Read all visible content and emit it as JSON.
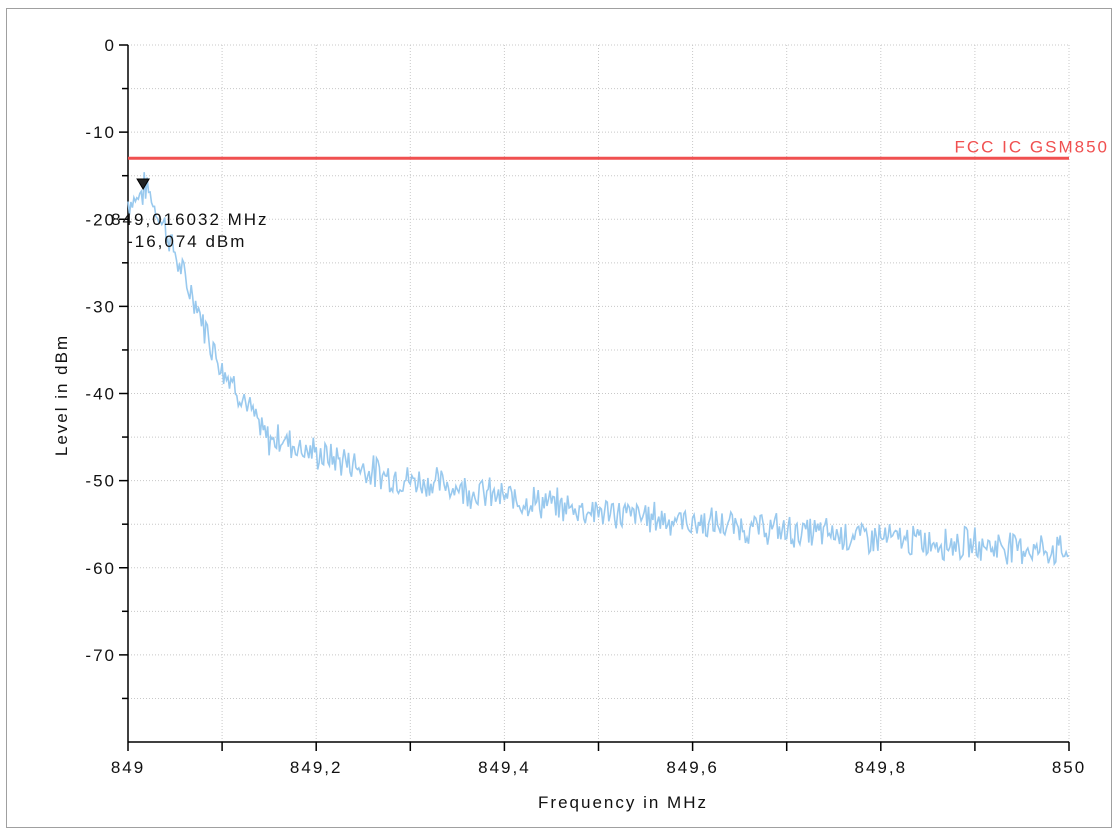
{
  "chart_data": {
    "type": "line",
    "xlabel": "Frequency in MHz",
    "ylabel": "Level in dBm",
    "xlim": [
      849,
      850
    ],
    "ylim": [
      -80,
      0
    ],
    "x_ticks": [
      "849",
      "849,2",
      "849,4",
      "849,6",
      "849,8",
      "850"
    ],
    "x_tick_values": [
      849,
      849.2,
      849.4,
      849.6,
      849.8,
      850
    ],
    "y_ticks": [
      "0",
      "-10",
      "-20",
      "-30",
      "-40",
      "-50",
      "-60",
      "-70"
    ],
    "y_tick_values": [
      0,
      -10,
      -20,
      -30,
      -40,
      -50,
      -60,
      -70
    ],
    "grid": true,
    "limit_line": {
      "name": "FCC IC GSM850",
      "value": -13,
      "color": "#f05050"
    },
    "marker": {
      "x": 849.016032,
      "y": -16.074,
      "freq_label": "849,016032 MHz",
      "level_label": "-16,074 dBm"
    },
    "series": [
      {
        "color": "#99c9ee",
        "x": [
          849.0,
          849.01,
          849.02,
          849.03,
          849.04,
          849.05,
          849.06,
          849.07,
          849.08,
          849.09,
          849.1,
          849.11,
          849.12,
          849.13,
          849.14,
          849.15,
          849.16,
          849.17,
          849.18,
          849.19,
          849.2,
          849.22,
          849.24,
          849.26,
          849.28,
          849.3,
          849.32,
          849.34,
          849.36,
          849.38,
          849.4,
          849.42,
          849.44,
          849.46,
          849.48,
          849.5,
          849.52,
          849.54,
          849.56,
          849.58,
          849.6,
          849.62,
          849.64,
          849.66,
          849.68,
          849.7,
          849.72,
          849.74,
          849.76,
          849.78,
          849.8,
          849.82,
          849.84,
          849.86,
          849.88,
          849.9,
          849.92,
          849.94,
          849.96,
          849.98,
          850.0
        ],
        "y": [
          -18,
          -17.5,
          -16.2,
          -19,
          -21,
          -24,
          -27,
          -29,
          -32,
          -34.5,
          -37,
          -38.5,
          -40,
          -42,
          -44,
          -45.5,
          -45,
          -45.5,
          -46,
          -46.5,
          -47,
          -47.5,
          -48,
          -49,
          -49.5,
          -50,
          -50.2,
          -50.5,
          -51,
          -51.5,
          -52,
          -52.2,
          -52.5,
          -53,
          -53.2,
          -53.5,
          -53.8,
          -54,
          -54.2,
          -54.5,
          -54.8,
          -55,
          -55.2,
          -55.5,
          -55.5,
          -55.8,
          -56,
          -56,
          -56.2,
          -56.5,
          -56.5,
          -56.8,
          -57,
          -57,
          -57.2,
          -57.3,
          -57.5,
          -57.5,
          -57.8,
          -58,
          -58
        ]
      }
    ]
  }
}
